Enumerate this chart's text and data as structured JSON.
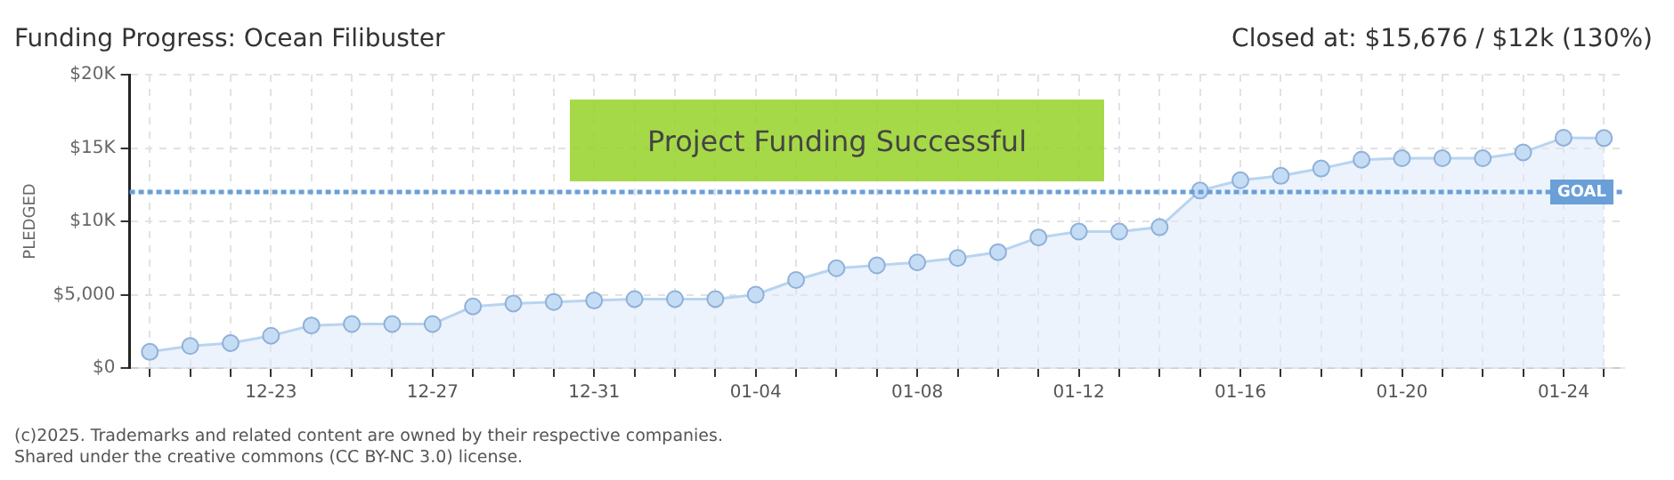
{
  "chart_data": {
    "type": "area",
    "title": "Funding Progress: Ocean Filibuster",
    "subtitle": "Closed at: $15,676 / $12k (130%)",
    "ylabel": "PLEDGED",
    "categories": [
      null,
      null,
      null,
      "12-23",
      null,
      null,
      null,
      "12-27",
      null,
      null,
      null,
      "12-31",
      null,
      null,
      null,
      "01-04",
      null,
      null,
      null,
      "01-08",
      null,
      null,
      null,
      "01-12",
      null,
      null,
      null,
      "01-16",
      null,
      null,
      null,
      "01-20",
      null,
      null,
      null,
      "01-24",
      null
    ],
    "series": [
      {
        "color": "#c5dcf5",
        "values": [
          1100,
          1500,
          1700,
          2200,
          2900,
          3000,
          3000,
          3000,
          4200,
          4400,
          4500,
          4600,
          4700,
          4700,
          4700,
          5000,
          6000,
          6800,
          7000,
          7200,
          7500,
          7900,
          8900,
          9300,
          9300,
          9600,
          12100,
          12800,
          13100,
          13600,
          14200,
          14300,
          14300,
          14300,
          14700,
          15700,
          15676
        ]
      }
    ],
    "ylim": [
      0,
      20000
    ],
    "yticks": [
      {
        "value": 0,
        "label": "$0"
      },
      {
        "value": 5000,
        "label": "$5,000"
      },
      {
        "value": 10000,
        "label": "$10K"
      },
      {
        "value": 15000,
        "label": "$15K"
      },
      {
        "value": 20000,
        "label": "$20K"
      }
    ],
    "ref_lines": [
      {
        "axis": "y",
        "value": 12000,
        "label": "GOAL",
        "color": "#6a9fd8",
        "line_style": "dotted"
      }
    ],
    "annotations": [
      "Project Funding Successful",
      "(c)2025. Trademarks and related content are owned by their respective companies.",
      "Shared under the creative commons (CC BY-NC 3.0) license."
    ],
    "grid": true,
    "marker": "circle",
    "legend": false
  }
}
